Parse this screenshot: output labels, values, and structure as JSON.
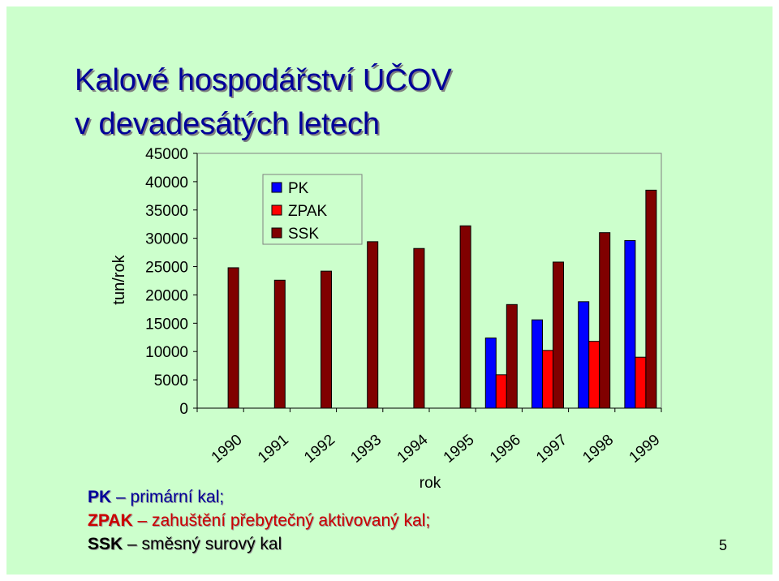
{
  "slide": {
    "title_line1": "Kalové hospodářství ÚČOV",
    "title_line2": "v devadesátých letech",
    "page_number": "5"
  },
  "notes": [
    {
      "abbr": "PK",
      "sep": " – ",
      "text": "primární kal;"
    },
    {
      "abbr": "ZPAK",
      "sep": " – ",
      "text": "zahuštění přebytečný aktivovaný kal;"
    },
    {
      "abbr": "SSK",
      "sep": " – ",
      "text": "směsný surový kal"
    }
  ],
  "chart_data": {
    "type": "bar",
    "categories": [
      "1990",
      "1991",
      "1992",
      "1993",
      "1994",
      "1995",
      "1996",
      "1997",
      "1998",
      "1999"
    ],
    "series": [
      {
        "name": "PK",
        "color": "#0000ff",
        "values": [
          null,
          null,
          null,
          null,
          null,
          null,
          12400,
          15600,
          18800,
          29600
        ]
      },
      {
        "name": "ZPAK",
        "color": "#ff0000",
        "values": [
          null,
          null,
          null,
          null,
          null,
          null,
          5900,
          10200,
          11800,
          9000
        ]
      },
      {
        "name": "SSK",
        "color": "#800000",
        "values": [
          24800,
          22600,
          24200,
          29400,
          28200,
          32200,
          18300,
          25800,
          31000,
          38500
        ]
      }
    ],
    "title": "",
    "xlabel": "rok",
    "ylabel": "tun/rok",
    "ylim": [
      0,
      45000
    ],
    "yticks": [
      0,
      5000,
      10000,
      15000,
      20000,
      25000,
      30000,
      35000,
      40000,
      45000
    ],
    "grid": false,
    "legend_position": "top-left"
  }
}
